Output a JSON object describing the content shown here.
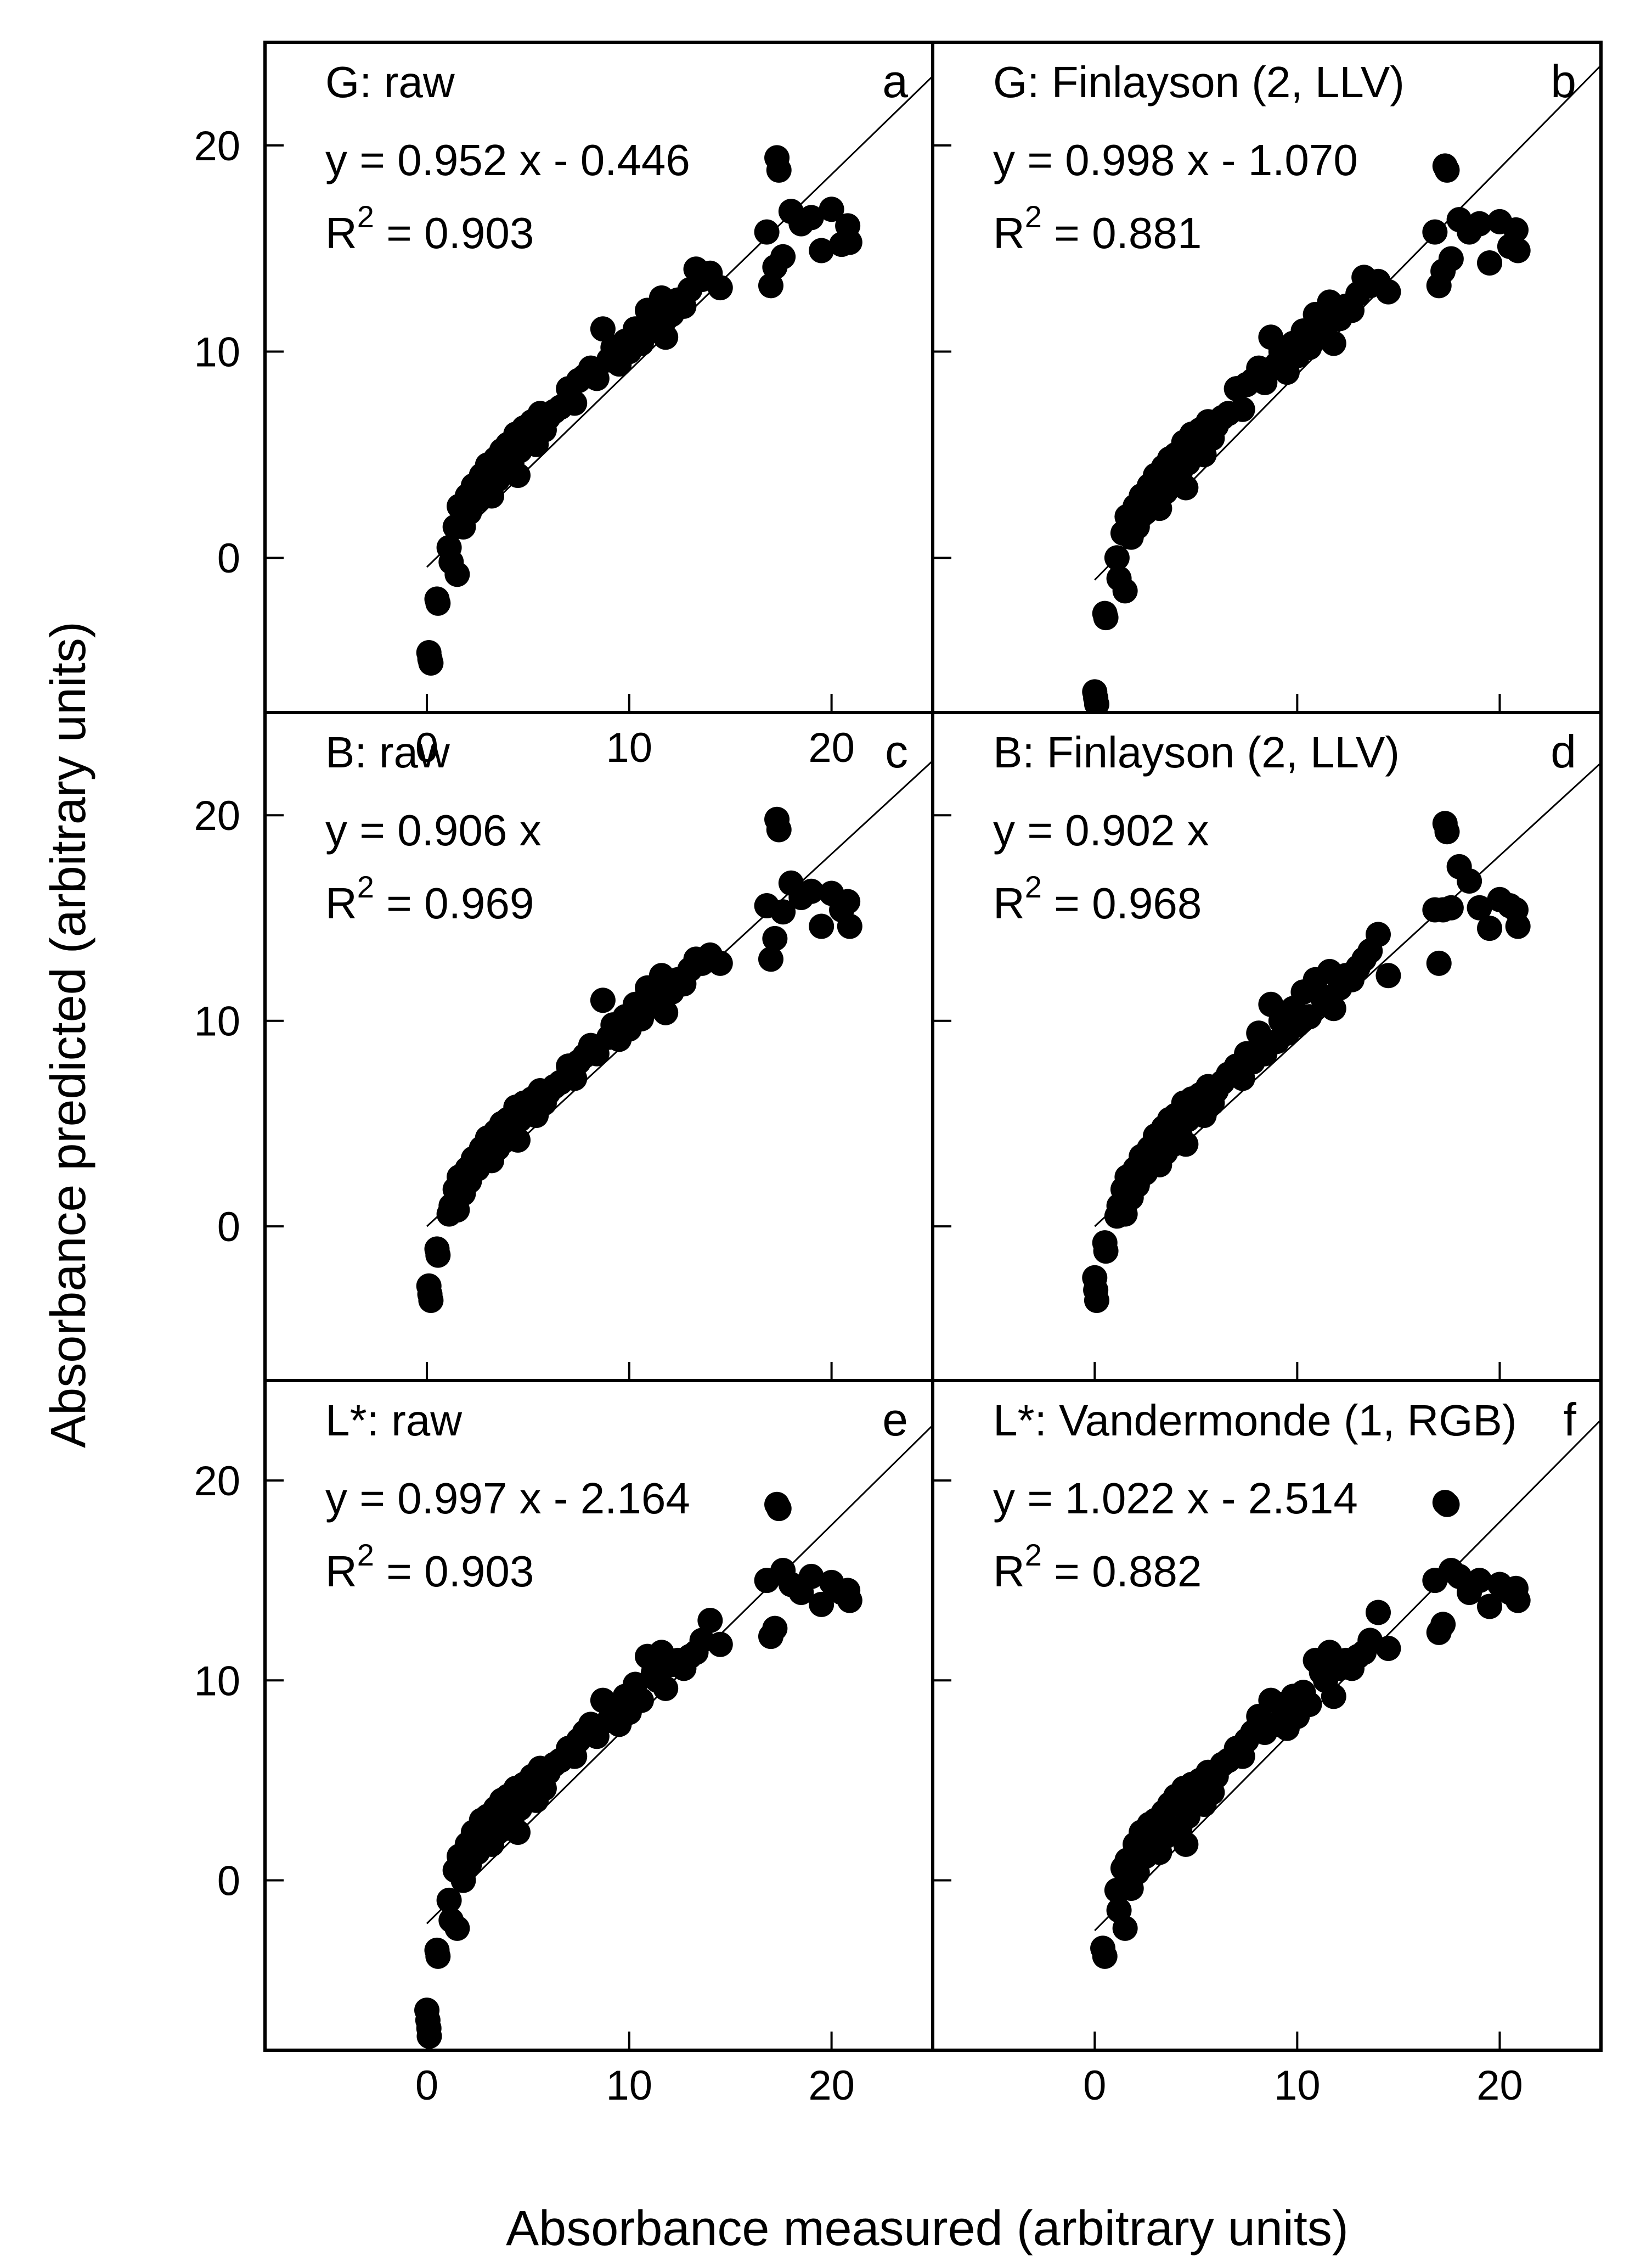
{
  "figure": {
    "xlabel": "Absorbance measured (arbitrary units)",
    "ylabel": "Absorbance predicted (arbitrary units)"
  },
  "chart_data": [
    {
      "type": "scatter",
      "panel": "a",
      "title": "G: raw",
      "equation": "y = 0.952 x - 0.446",
      "r2_label": "R",
      "r2_exp": "2",
      "r2_value": " = 0.903",
      "fit": {
        "slope": 0.952,
        "intercept": -0.446
      },
      "r2": 0.903,
      "xlim": [
        -8,
        25
      ],
      "ylim": [
        -7.5,
        25
      ],
      "xticks": [
        0,
        10,
        20
      ],
      "yticks": [
        0,
        10,
        20
      ],
      "xticklabels": [
        "0",
        "10",
        "20"
      ],
      "yticklabels": [
        "0",
        "10",
        "20"
      ],
      "x": [
        0.1,
        0.15,
        0.2,
        0.5,
        0.55,
        1.1,
        1.2,
        1.4,
        1.5,
        1.6,
        1.8,
        2,
        2.1,
        2.3,
        2.5,
        2.7,
        2.9,
        3,
        3.2,
        3.4,
        3.5,
        3.7,
        3.9,
        4,
        4.2,
        4.4,
        4.5,
        4.6,
        4.8,
        5,
        5.2,
        5.4,
        5.6,
        5.8,
        6,
        6.3,
        6.6,
        7,
        7.3,
        7.5,
        7.8,
        8.1,
        8.4,
        8.7,
        9,
        9.2,
        9.5,
        9.8,
        10,
        10.3,
        10.6,
        10.9,
        11.2,
        11.4,
        11.6,
        11.8,
        12.1,
        12.4,
        12.7,
        13,
        13.3,
        13.6,
        14,
        14.5,
        16.8,
        17,
        17.2,
        17.3,
        17.4,
        17.6,
        18,
        18.5,
        19,
        19.5,
        20,
        20.5,
        20.8,
        20.9
      ],
      "y": [
        -4.6,
        -4.9,
        -5.1,
        -2,
        -2.2,
        0.5,
        -0.2,
        1.5,
        -0.8,
        2.5,
        1.5,
        3,
        2.2,
        3.5,
        2.8,
        4,
        3.3,
        4.5,
        3,
        4.8,
        3.8,
        5.2,
        4.2,
        5.5,
        4.6,
        6,
        4,
        5.2,
        6.3,
        5.8,
        6.6,
        5.5,
        7,
        6.2,
        6.8,
        7.1,
        7.3,
        8.2,
        7.5,
        8.6,
        8.8,
        9.2,
        8.7,
        11.1,
        9.6,
        10.2,
        9.4,
        10.5,
        10,
        11.1,
        10.4,
        12,
        11.4,
        11,
        12.6,
        10.7,
        11.8,
        12.5,
        12.2,
        13,
        14,
        13.5,
        13.8,
        13.1,
        15.8,
        13.2,
        14.1,
        19.4,
        18.8,
        14.6,
        16.8,
        16.2,
        16.5,
        14.9,
        16.9,
        15.2,
        16.1,
        15.3
      ]
    },
    {
      "type": "scatter",
      "panel": "b",
      "title": "G: Finlayson (2, LLV)",
      "equation": "y = 0.998 x - 1.070",
      "r2_label": "R",
      "r2_exp": "2",
      "r2_value": " = 0.881",
      "fit": {
        "slope": 0.998,
        "intercept": -1.07
      },
      "r2": 0.881,
      "xlim": [
        -8,
        25
      ],
      "ylim": [
        -7.5,
        25
      ],
      "xticks": [
        0,
        10,
        20
      ],
      "yticks": [
        0,
        10,
        20
      ],
      "xticklabels": [
        "",
        "",
        ""
      ],
      "yticklabels": [
        "",
        "",
        ""
      ],
      "x": [
        0,
        0.05,
        0.1,
        0.5,
        0.55,
        1.1,
        1.2,
        1.4,
        1.5,
        1.6,
        1.8,
        2,
        2.1,
        2.3,
        2.5,
        2.7,
        2.9,
        3,
        3.2,
        3.4,
        3.5,
        3.7,
        3.9,
        4,
        4.2,
        4.4,
        4.5,
        4.6,
        4.8,
        5,
        5.2,
        5.4,
        5.6,
        5.8,
        6,
        6.3,
        6.6,
        7,
        7.3,
        7.5,
        7.8,
        8.1,
        8.4,
        8.7,
        9,
        9.2,
        9.5,
        9.8,
        10,
        10.3,
        10.6,
        10.9,
        11.2,
        11.4,
        11.6,
        11.8,
        12.1,
        12.4,
        12.7,
        13,
        13.3,
        13.6,
        14,
        14.5,
        16.8,
        17,
        17.2,
        17.3,
        17.4,
        17.6,
        18,
        18.5,
        19,
        19.5,
        20,
        20.5,
        20.8,
        20.9
      ],
      "y": [
        -6.5,
        -6.8,
        -7.1,
        -2.7,
        -2.9,
        0,
        -1,
        1.2,
        -1.6,
        2,
        1,
        2.5,
        1.5,
        3,
        2.2,
        3.5,
        2.8,
        4,
        2.4,
        4.4,
        3.2,
        4.8,
        3.6,
        5,
        4,
        5.6,
        3.4,
        4.6,
        6,
        5.4,
        6.2,
        5,
        6.6,
        5.8,
        6.4,
        6.8,
        7,
        8.2,
        7.2,
        8.4,
        8.6,
        9.2,
        8.5,
        10.7,
        9.4,
        10,
        9,
        10.4,
        9.8,
        11,
        10.2,
        11.8,
        11.2,
        10.8,
        12.4,
        10.4,
        11.6,
        12.2,
        12,
        12.8,
        13.6,
        13.2,
        13.4,
        12.9,
        15.8,
        13.2,
        13.9,
        19,
        18.8,
        14.5,
        16.4,
        15.8,
        16.2,
        14.3,
        16.3,
        15.1,
        15.9,
        14.9
      ]
    },
    {
      "type": "scatter",
      "panel": "c",
      "title": "B: raw",
      "equation": "y = 0.906 x",
      "r2_label": "R",
      "r2_exp": "2",
      "r2_value": " = 0.969",
      "fit": {
        "slope": 0.906,
        "intercept": 0
      },
      "r2": 0.969,
      "xlim": [
        -8,
        25
      ],
      "ylim": [
        -7.5,
        25
      ],
      "xticks": [
        0,
        10,
        20
      ],
      "yticks": [
        0,
        10,
        20
      ],
      "xticklabels": [
        "",
        "",
        ""
      ],
      "yticklabels": [
        "0",
        "10",
        "20"
      ],
      "x": [
        0.1,
        0.15,
        0.2,
        0.5,
        0.55,
        1.1,
        1.2,
        1.4,
        1.5,
        1.6,
        1.8,
        2,
        2.1,
        2.3,
        2.5,
        2.7,
        2.9,
        3,
        3.2,
        3.4,
        3.5,
        3.7,
        3.9,
        4,
        4.2,
        4.4,
        4.5,
        4.6,
        4.8,
        5,
        5.2,
        5.4,
        5.6,
        5.8,
        6,
        6.3,
        6.6,
        7,
        7.3,
        7.5,
        7.8,
        8.1,
        8.4,
        8.7,
        9,
        9.2,
        9.5,
        9.8,
        10,
        10.3,
        10.6,
        10.9,
        11.2,
        11.4,
        11.6,
        11.8,
        12.1,
        12.4,
        12.7,
        13,
        13.3,
        13.6,
        14,
        14.5,
        16.8,
        17,
        17.2,
        17.3,
        17.4,
        17.6,
        18,
        18.5,
        19,
        19.5,
        20,
        20.5,
        20.8,
        20.9
      ],
      "y": [
        -2.9,
        -3.3,
        -3.6,
        -1.1,
        -1.4,
        0.6,
        1,
        1.8,
        0.8,
        2.4,
        1.6,
        2.8,
        2.2,
        3.3,
        2.8,
        3.8,
        3.4,
        4.3,
        3.2,
        4.6,
        3.8,
        5,
        4.2,
        5.2,
        4.6,
        5.8,
        4.2,
        5.2,
        6,
        5.6,
        6.2,
        5.4,
        6.6,
        6,
        6.5,
        6.8,
        7,
        7.8,
        7.2,
        8,
        8.3,
        8.8,
        8.4,
        11,
        9.2,
        9.8,
        9.1,
        10.2,
        9.6,
        10.8,
        10.1,
        11.6,
        11,
        10.7,
        12.2,
        10.4,
        11.4,
        12,
        11.8,
        12.5,
        13,
        12.8,
        13.2,
        12.8,
        15.6,
        13,
        14,
        19.8,
        19.3,
        15.3,
        16.7,
        16,
        16.3,
        14.6,
        16.2,
        15.4,
        15.8,
        14.6
      ]
    },
    {
      "type": "scatter",
      "panel": "d",
      "title": "B: Finlayson (2, LLV)",
      "equation": "y = 0.902 x",
      "r2_label": "R",
      "r2_exp": "2",
      "r2_value": " = 0.968",
      "fit": {
        "slope": 0.902,
        "intercept": 0
      },
      "r2": 0.968,
      "xlim": [
        -8,
        25
      ],
      "ylim": [
        -7.5,
        25
      ],
      "xticks": [
        0,
        10,
        20
      ],
      "yticks": [
        0,
        10,
        20
      ],
      "xticklabels": [
        "",
        "",
        ""
      ],
      "yticklabels": [
        "",
        "",
        ""
      ],
      "x": [
        0,
        0.05,
        0.1,
        0.5,
        0.55,
        1.1,
        1.2,
        1.4,
        1.5,
        1.6,
        1.8,
        2,
        2.1,
        2.3,
        2.5,
        2.7,
        2.9,
        3,
        3.2,
        3.4,
        3.5,
        3.7,
        3.9,
        4,
        4.2,
        4.4,
        4.5,
        4.6,
        4.8,
        5,
        5.2,
        5.4,
        5.6,
        5.8,
        6,
        6.3,
        6.6,
        7,
        7.3,
        7.5,
        7.8,
        8.1,
        8.4,
        8.7,
        9,
        9.2,
        9.5,
        9.8,
        10,
        10.3,
        10.6,
        10.9,
        11.2,
        11.4,
        11.6,
        11.8,
        12.1,
        12.4,
        12.7,
        13,
        13.3,
        13.6,
        14,
        14.5,
        16.8,
        17,
        17.2,
        17.3,
        17.4,
        17.6,
        18,
        18.5,
        19,
        19.5,
        20,
        20.5,
        20.8,
        20.9
      ],
      "y": [
        -2.5,
        -3.1,
        -3.6,
        -0.8,
        -1.2,
        0.5,
        1,
        1.8,
        0.6,
        2.4,
        1.4,
        2.8,
        2,
        3.4,
        2.6,
        3.8,
        3.2,
        4.4,
        3,
        4.8,
        3.6,
        5.2,
        4,
        5.4,
        4.5,
        6,
        4,
        5.2,
        6.2,
        5.6,
        6.4,
        5.4,
        6.8,
        6,
        6.6,
        7,
        7.4,
        7.8,
        7.2,
        8.4,
        8,
        9.4,
        8.4,
        10.8,
        9,
        10,
        9.4,
        10.6,
        9.8,
        11.4,
        10.2,
        12,
        11.2,
        10.8,
        12.4,
        10.6,
        11.6,
        12.2,
        12,
        12.6,
        13,
        13.4,
        14.2,
        12.2,
        15.4,
        12.8,
        15.4,
        19.6,
        19.2,
        15.5,
        17.5,
        16.8,
        15.5,
        14.5,
        15.9,
        15.6,
        15.4,
        14.6
      ]
    },
    {
      "type": "scatter",
      "panel": "e",
      "title": "L*: raw",
      "equation": "y = 0.997 x - 2.164",
      "r2_label": "R",
      "r2_exp": "2",
      "r2_value": " = 0.903",
      "fit": {
        "slope": 0.997,
        "intercept": -2.164
      },
      "r2": 0.903,
      "xlim": [
        -8,
        25
      ],
      "ylim": [
        -8.5,
        25
      ],
      "xticks": [
        0,
        10,
        20
      ],
      "yticks": [
        0,
        10,
        20
      ],
      "xticklabels": [
        "0",
        "10",
        "20"
      ],
      "yticklabels": [
        "0",
        "10",
        "20"
      ],
      "x": [
        0,
        0.05,
        0.1,
        0.12,
        0.5,
        0.55,
        1.1,
        1.2,
        1.4,
        1.5,
        1.6,
        1.8,
        2,
        2.1,
        2.3,
        2.5,
        2.7,
        2.9,
        3,
        3.2,
        3.4,
        3.5,
        3.7,
        3.9,
        4,
        4.2,
        4.4,
        4.5,
        4.6,
        4.8,
        5,
        5.2,
        5.4,
        5.6,
        5.8,
        6,
        6.3,
        6.6,
        7,
        7.3,
        7.5,
        7.8,
        8.1,
        8.4,
        8.7,
        9,
        9.2,
        9.5,
        9.8,
        10,
        10.3,
        10.6,
        10.9,
        11.2,
        11.4,
        11.6,
        11.8,
        12.1,
        12.4,
        12.7,
        13,
        13.3,
        13.6,
        14,
        14.5,
        16.8,
        17,
        17.2,
        17.3,
        17.4,
        17.6,
        18,
        18.5,
        19,
        19.5,
        20,
        20.5,
        20.8,
        20.9
      ],
      "y": [
        -6.5,
        -7,
        -7.4,
        -7.8,
        -3.5,
        -3.8,
        -1,
        -2,
        0.5,
        -2.4,
        1.2,
        0,
        1.8,
        0.8,
        2.4,
        1.4,
        3,
        2,
        3.2,
        1.8,
        3.6,
        2.4,
        4,
        2.6,
        4.2,
        3,
        4.6,
        2.4,
        3.6,
        4.8,
        4.2,
        5.2,
        4,
        5.6,
        4.6,
        5.4,
        5.8,
        6,
        6.6,
        6.2,
        7,
        7.4,
        7.8,
        7.2,
        9,
        8,
        8.6,
        7.8,
        9.2,
        8.4,
        9.8,
        9,
        11.2,
        10.4,
        10,
        11.4,
        9.6,
        10.8,
        11,
        10.6,
        11.2,
        11.4,
        12,
        13,
        11.8,
        15,
        12.2,
        12.6,
        18.8,
        18.6,
        15.5,
        14.8,
        14.4,
        15.2,
        13.8,
        14.9,
        14.4,
        14.5,
        14
      ]
    },
    {
      "type": "scatter",
      "panel": "f",
      "title": "L*: Vandermonde (1, RGB)",
      "equation": "y = 1.022 x - 2.514",
      "r2_label": "R",
      "r2_exp": "2",
      "r2_value": " = 0.882",
      "fit": {
        "slope": 1.022,
        "intercept": -2.514
      },
      "r2": 0.882,
      "xlim": [
        -8,
        25
      ],
      "ylim": [
        -8.5,
        25
      ],
      "xticks": [
        0,
        10,
        20
      ],
      "yticks": [
        0,
        10,
        20
      ],
      "xticklabels": [
        "0",
        "10",
        "20"
      ],
      "yticklabels": [
        "",
        "",
        ""
      ],
      "x": [
        0.4,
        0.5,
        1.1,
        1.2,
        1.4,
        1.5,
        1.6,
        1.8,
        2,
        2.1,
        2.3,
        2.5,
        2.7,
        2.9,
        3,
        3.2,
        3.4,
        3.5,
        3.7,
        3.9,
        4,
        4.2,
        4.4,
        4.5,
        4.6,
        4.8,
        5,
        5.2,
        5.4,
        5.6,
        5.8,
        6,
        6.3,
        6.6,
        7,
        7.3,
        7.5,
        7.8,
        8.1,
        8.4,
        8.7,
        9,
        9.2,
        9.5,
        9.8,
        10,
        10.3,
        10.6,
        10.9,
        11.2,
        11.4,
        11.6,
        11.8,
        12.1,
        12.4,
        12.7,
        13,
        13.3,
        13.6,
        14,
        14.5,
        16.8,
        17,
        17.2,
        17.3,
        17.4,
        17.6,
        18,
        18.5,
        19,
        19.5,
        20,
        20.5,
        20.8,
        20.9
      ],
      "y": [
        -3.4,
        -3.8,
        -0.5,
        -1.5,
        0.6,
        -2.4,
        1,
        -0.4,
        1.8,
        0.4,
        2.4,
        1.2,
        2.8,
        1.6,
        3,
        1.4,
        3.4,
        2.2,
        3.8,
        2.4,
        4.2,
        2.6,
        4.6,
        1.8,
        3.2,
        4.8,
        4,
        5,
        3.8,
        5.4,
        4.4,
        5.2,
        5.8,
        6,
        6.6,
        6.2,
        7,
        7.4,
        8.2,
        7.4,
        9,
        7.8,
        8.8,
        7.6,
        9.2,
        8.2,
        9.4,
        8.8,
        11,
        10.4,
        10,
        11.4,
        9.2,
        10.6,
        11,
        10.6,
        11.2,
        11.4,
        12,
        13.4,
        11.6,
        15,
        12.4,
        12.8,
        18.9,
        18.8,
        15.5,
        15.2,
        14.4,
        15,
        13.7,
        14.8,
        14.4,
        14.6,
        14
      ]
    }
  ]
}
